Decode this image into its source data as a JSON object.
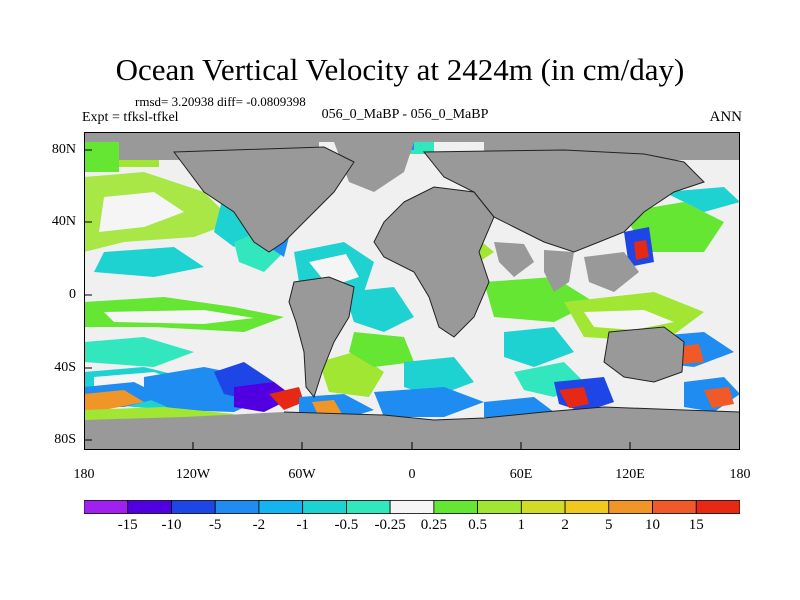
{
  "title": "Ocean Vertical Velocity at 2424m (in cm/day)",
  "stats": "rmsd= 3.20938 diff= -0.0809398",
  "expt": "Expt = tfksl-tfkel",
  "case_label": "056_0_MaBP - 056_0_MaBP",
  "season": "ANN",
  "lat_labels": [
    "80N",
    "40N",
    "0",
    "40S",
    "80S"
  ],
  "lon_labels": [
    "180",
    "120W",
    "60W",
    "0",
    "60E",
    "120E",
    "180"
  ],
  "colorbar": {
    "labels": [
      "-15",
      "-10",
      "-5",
      "-2",
      "-1",
      "-0.5",
      "-0.25",
      "0.25",
      "0.5",
      "1",
      "2",
      "5",
      "10",
      "15"
    ],
    "colors": [
      "#a020f0",
      "#5000e0",
      "#1e46e6",
      "#1e8cf0",
      "#14b4f0",
      "#1ed2d2",
      "#32e6be",
      "#f5f5f5",
      "#64e632",
      "#a0e632",
      "#d2dc28",
      "#f0c81e",
      "#f09628",
      "#f05a28",
      "#e62814"
    ]
  },
  "colors": {
    "land": "#999999",
    "ocean_neutral": "#f0f0f0"
  }
}
